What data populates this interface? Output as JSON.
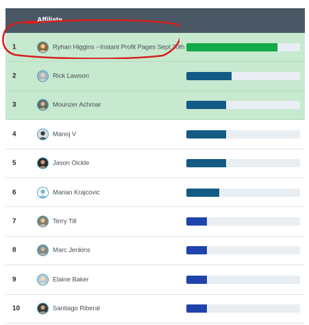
{
  "header": {
    "affiliate_label": "Affiliate"
  },
  "rows": [
    {
      "rank": "1",
      "name": "Ryhan Higgins --Instant Profit Pages Sept 30th",
      "progress": 0.8,
      "bar_color": "#13a84a",
      "highlight": true,
      "avatar_bg": "#8a6a3c",
      "avatar_fg": "#f0c896"
    },
    {
      "rank": "2",
      "name": "Rick Lawson",
      "progress": 0.4,
      "bar_color": "#135a85",
      "highlight": true,
      "avatar_bg": "#9fb6c4",
      "avatar_fg": "#e6d2b8"
    },
    {
      "rank": "3",
      "name": "Mounzer Achmar",
      "progress": 0.35,
      "bar_color": "#135a85",
      "highlight": true,
      "avatar_bg": "#5e6b60",
      "avatar_fg": "#d9b48c"
    },
    {
      "rank": "4",
      "name": "Manoj V",
      "progress": 0.35,
      "bar_color": "#135a85",
      "highlight": false,
      "avatar_bg": "#d9dde0",
      "avatar_fg": "#3a3a3a"
    },
    {
      "rank": "5",
      "name": "Jason Oickle",
      "progress": 0.35,
      "bar_color": "#135a85",
      "highlight": false,
      "avatar_bg": "#2c2c2c",
      "avatar_fg": "#c49a78"
    },
    {
      "rank": "6",
      "name": "Marian Krajcovic",
      "progress": 0.29,
      "bar_color": "#135a85",
      "highlight": false,
      "avatar_bg": "#ffffff",
      "avatar_fg": "#7fb0c6"
    },
    {
      "rank": "7",
      "name": "Terry Till",
      "progress": 0.18,
      "bar_color": "#1f43ad",
      "highlight": false,
      "avatar_bg": "#8a7a6a",
      "avatar_fg": "#e3c4a6"
    },
    {
      "rank": "8",
      "name": "Marc Jenkins",
      "progress": 0.18,
      "bar_color": "#1f43ad",
      "highlight": false,
      "avatar_bg": "#7a8a8a",
      "avatar_fg": "#d8b292"
    },
    {
      "rank": "9",
      "name": "Elaine Baker",
      "progress": 0.18,
      "bar_color": "#1f43ad",
      "highlight": false,
      "avatar_bg": "#b9c9cf",
      "avatar_fg": "#f1dcc2"
    },
    {
      "rank": "10",
      "name": "Santiago Riberal",
      "progress": 0.18,
      "bar_color": "#1f43ad",
      "highlight": false,
      "avatar_bg": "#3a3a3a",
      "avatar_fg": "#c9a07e"
    }
  ],
  "annotation": {
    "circle_color": "#d42020"
  }
}
